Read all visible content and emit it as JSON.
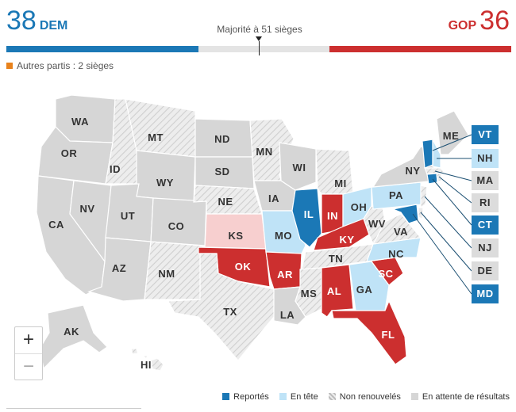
{
  "scoreboard": {
    "dem_seats": "38",
    "dem_label": "DEM",
    "gop_seats": "36",
    "gop_label": "GOP",
    "majority_label": "Majorité à 51 sièges",
    "others_label": "Autres partis : 2 sièges",
    "total_seats": 100
  },
  "colors": {
    "dem_won": "#1b78b6",
    "dem_lead": "#bfe3f7",
    "gop_won": "#cc2f2f",
    "gop_lead": "#f7cfcf",
    "not_renewed": "#e4e4e4",
    "waiting": "#d6d6d6",
    "others": "#e8821c"
  },
  "legend": {
    "won": "Reportés",
    "leading": "En tête",
    "not_renewed": "Non renouvelés",
    "waiting": "En attente de résultats"
  },
  "zoom": {
    "in": "+",
    "out": "−"
  },
  "states": {
    "WA": {
      "label": "WA",
      "status": "waiting"
    },
    "OR": {
      "label": "OR",
      "status": "waiting"
    },
    "CA": {
      "label": "CA",
      "status": "waiting"
    },
    "NV": {
      "label": "NV",
      "status": "waiting"
    },
    "ID": {
      "label": "ID",
      "status": "not_renewed"
    },
    "MT": {
      "label": "MT",
      "status": "not_renewed"
    },
    "WY": {
      "label": "WY",
      "status": "waiting"
    },
    "UT": {
      "label": "UT",
      "status": "waiting"
    },
    "AZ": {
      "label": "AZ",
      "status": "waiting"
    },
    "CO": {
      "label": "CO",
      "status": "waiting"
    },
    "NM": {
      "label": "NM",
      "status": "not_renewed"
    },
    "ND": {
      "label": "ND",
      "status": "waiting"
    },
    "SD": {
      "label": "SD",
      "status": "waiting"
    },
    "NE": {
      "label": "NE",
      "status": "not_renewed"
    },
    "KS": {
      "label": "KS",
      "status": "gop_lead"
    },
    "OK": {
      "label": "OK",
      "status": "gop_won"
    },
    "TX": {
      "label": "TX",
      "status": "not_renewed"
    },
    "MN": {
      "label": "MN",
      "status": "not_renewed"
    },
    "IA": {
      "label": "IA",
      "status": "waiting"
    },
    "MO": {
      "label": "MO",
      "status": "dem_lead"
    },
    "AR": {
      "label": "AR",
      "status": "gop_won"
    },
    "LA": {
      "label": "LA",
      "status": "waiting"
    },
    "WI": {
      "label": "WI",
      "status": "waiting"
    },
    "IL": {
      "label": "IL",
      "status": "dem_won"
    },
    "MI": {
      "label": "MI",
      "status": "not_renewed"
    },
    "IN": {
      "label": "IN",
      "status": "gop_won"
    },
    "OH": {
      "label": "OH",
      "status": "dem_lead"
    },
    "KY": {
      "label": "KY",
      "status": "gop_won"
    },
    "TN": {
      "label": "TN",
      "status": "not_renewed"
    },
    "MS": {
      "label": "MS",
      "status": "not_renewed"
    },
    "AL": {
      "label": "AL",
      "status": "gop_won"
    },
    "GA": {
      "label": "GA",
      "status": "dem_lead"
    },
    "FL": {
      "label": "FL",
      "status": "gop_won"
    },
    "SC": {
      "label": "SC",
      "status": "gop_won"
    },
    "NC": {
      "label": "NC",
      "status": "dem_lead"
    },
    "VA": {
      "label": "VA",
      "status": "not_renewed"
    },
    "WV": {
      "label": "WV",
      "status": "not_renewed"
    },
    "PA": {
      "label": "PA",
      "status": "dem_lead"
    },
    "NY": {
      "label": "NY",
      "status": "waiting"
    },
    "ME": {
      "label": "ME",
      "status": "waiting"
    },
    "AK": {
      "label": "AK",
      "status": "waiting"
    },
    "HI": {
      "label": "HI",
      "status": "not_renewed"
    }
  },
  "northeast": {
    "VT": {
      "label": "VT",
      "status": "dem_won"
    },
    "NH": {
      "label": "NH",
      "status": "dem_lead"
    },
    "MA": {
      "label": "MA",
      "status": "not_renewed"
    },
    "RI": {
      "label": "RI",
      "status": "not_renewed"
    },
    "CT": {
      "label": "CT",
      "status": "dem_won"
    },
    "NJ": {
      "label": "NJ",
      "status": "not_renewed"
    },
    "DE": {
      "label": "DE",
      "status": "not_renewed"
    },
    "MD": {
      "label": "MD",
      "status": "dem_won"
    }
  }
}
